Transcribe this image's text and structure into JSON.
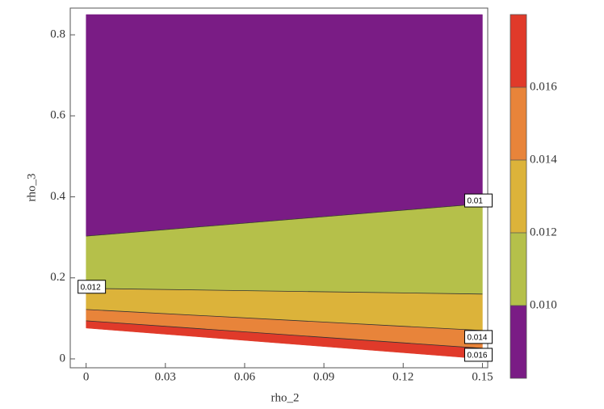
{
  "chart_data": {
    "type": "contour",
    "xlabel": "rho_2",
    "ylabel": "rho_3",
    "xlim": [
      -0.006,
      0.152
    ],
    "ylim": [
      -0.022,
      0.866
    ],
    "xticks": [
      0,
      0.03,
      0.06,
      0.09,
      0.12,
      0.15
    ],
    "yticks": [
      0,
      0.2,
      0.4,
      0.6,
      0.8
    ],
    "domain": {
      "x": [
        0,
        0.15
      ],
      "top": 0.85,
      "bottom": [
        0.076,
        0
      ]
    },
    "contours": [
      {
        "level": 0.01,
        "label": "0.01",
        "x": [
          0,
          0.15
        ],
        "y": [
          0.303,
          0.383
        ]
      },
      {
        "level": 0.012,
        "label": "0.012",
        "x": [
          0,
          0.15
        ],
        "y": [
          0.174,
          0.16
        ]
      },
      {
        "level": 0.014,
        "label": "0.014",
        "x": [
          0,
          0.15
        ],
        "y": [
          0.122,
          0.07
        ]
      },
      {
        "level": 0.016,
        "label": "0.016",
        "x": [
          0,
          0.15
        ],
        "y": [
          0.094,
          0.026
        ]
      }
    ],
    "colors": [
      "#7a1c85",
      "#b5c04a",
      "#dcb33a",
      "#e8843a",
      "#e03a2a"
    ],
    "zlim": [
      0.008,
      0.018
    ],
    "zticks": [
      {
        "value": 0.01,
        "label": "0.010"
      },
      0.012,
      0.014,
      0.016
    ]
  }
}
